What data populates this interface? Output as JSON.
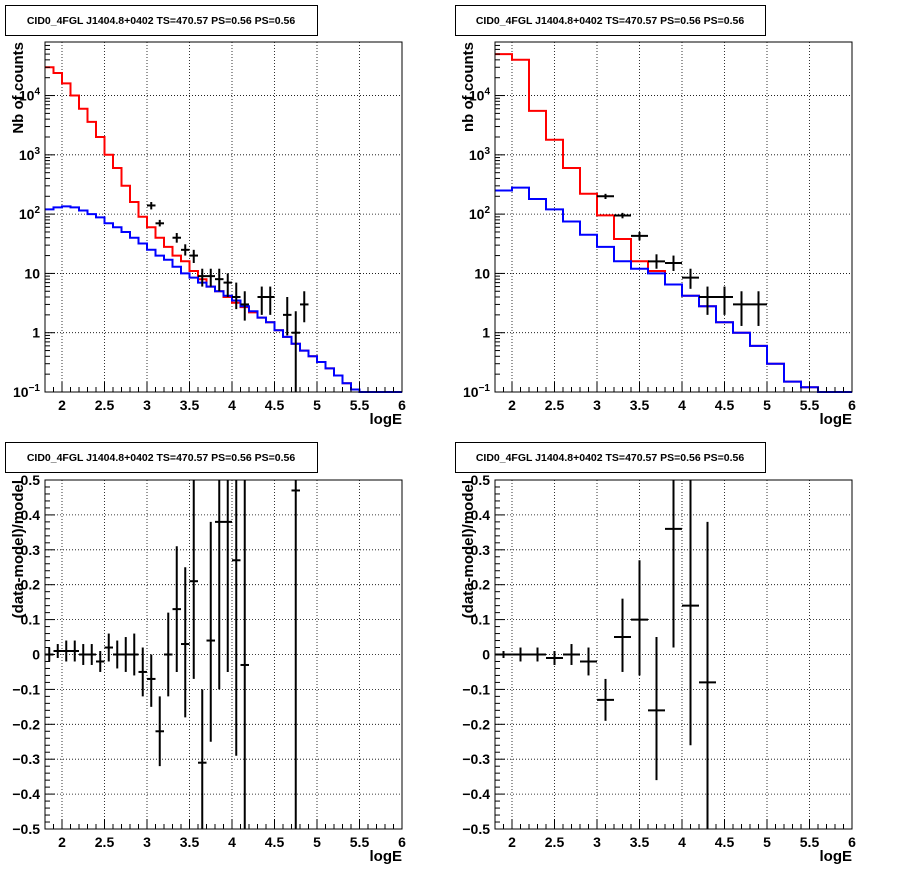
{
  "colors": {
    "total_model": "#ff0000",
    "component_model": "#0000ff",
    "data": "#000000",
    "frame": "#000000",
    "grid": "#000000"
  },
  "chart_data": [
    {
      "id": "counts-left",
      "type": "line",
      "title": "CID0_4FGL J1404.8+0402 TS=470.57 PS=0.56 PS=0.56",
      "xlabel": "logE",
      "ylabel": "Nb of counts",
      "xlim": [
        1.8,
        6.0
      ],
      "ylim": [
        0.1,
        80000
      ],
      "yscale": "log",
      "grid": true,
      "xticks": [
        "2",
        "2.5",
        "3",
        "3.5",
        "4",
        "4.5",
        "5",
        "5.5",
        "6"
      ],
      "yticks": [
        {
          "value": 0.1,
          "base": "10",
          "exp": "−1"
        },
        {
          "value": 1,
          "label": "1"
        },
        {
          "value": 10,
          "label": "10"
        },
        {
          "value": 100,
          "base": "10",
          "exp": "2"
        },
        {
          "value": 1000,
          "base": "10",
          "exp": "3"
        },
        {
          "value": 10000,
          "base": "10",
          "exp": "4"
        }
      ],
      "bin_edges": [
        1.8,
        1.9,
        2.0,
        2.1,
        2.2,
        2.3,
        2.4,
        2.5,
        2.6,
        2.7,
        2.8,
        2.9,
        3.0,
        3.1,
        3.2,
        3.3,
        3.4,
        3.5,
        3.6,
        3.7,
        3.8,
        3.9,
        4.0,
        4.1,
        4.2,
        4.3,
        4.4,
        4.5,
        4.6,
        4.7,
        4.8,
        4.9,
        5.0,
        5.1,
        5.2,
        5.3,
        5.4,
        5.5,
        5.6,
        5.7,
        5.8,
        5.9,
        6.0
      ],
      "series": [
        {
          "color_key": "total_model",
          "values": [
            30000,
            24000,
            16000,
            10000,
            6000,
            3600,
            2000,
            1000,
            600,
            300,
            160,
            90,
            60,
            40,
            28,
            20,
            16,
            11,
            8,
            6,
            5,
            4,
            3.2,
            2.7,
            2.2,
            1.8,
            1.5,
            1.1,
            0.85,
            0.65,
            0.5,
            0.4,
            0.32,
            0.25,
            0.19,
            0.14,
            0.11,
            0.1,
            0.1,
            0.1,
            0.1,
            0.1
          ]
        },
        {
          "color_key": "component_model",
          "values": [
            120,
            130,
            135,
            130,
            115,
            100,
            88,
            70,
            60,
            50,
            40,
            32,
            25,
            20,
            17,
            13,
            10,
            8.5,
            7,
            6,
            5,
            4.2,
            3.5,
            2.8,
            2.3,
            1.8,
            1.5,
            1.1,
            0.85,
            0.65,
            0.5,
            0.4,
            0.32,
            0.25,
            0.19,
            0.14,
            0.11,
            0.1,
            0.1,
            0.1,
            0.1,
            0.1
          ]
        }
      ],
      "points": [
        {
          "x": 3.05,
          "y": 140,
          "lo": 120,
          "hi": 160
        },
        {
          "x": 3.15,
          "y": 70,
          "lo": 62,
          "hi": 80
        },
        {
          "x": 3.35,
          "y": 40,
          "lo": 33,
          "hi": 48
        },
        {
          "x": 3.45,
          "y": 25,
          "lo": 20,
          "hi": 31
        },
        {
          "x": 3.55,
          "y": 20,
          "lo": 15,
          "hi": 25
        },
        {
          "x": 3.65,
          "y": 9,
          "lo": 6,
          "hi": 12
        },
        {
          "x": 3.75,
          "y": 9,
          "lo": 6,
          "hi": 12
        },
        {
          "x": 3.85,
          "y": 8,
          "lo": 5,
          "hi": 12
        },
        {
          "x": 3.95,
          "y": 7,
          "lo": 4,
          "hi": 10
        },
        {
          "x": 4.05,
          "y": 4,
          "lo": 2.5,
          "hi": 7
        },
        {
          "x": 4.15,
          "y": 3,
          "lo": 1.6,
          "hi": 5
        },
        {
          "x": 4.35,
          "y": 4,
          "lo": 2,
          "hi": 6
        },
        {
          "x": 4.45,
          "y": 4,
          "lo": 2,
          "hi": 6
        },
        {
          "x": 4.65,
          "y": 2,
          "lo": 0.9,
          "hi": 4
        },
        {
          "x": 4.75,
          "y": 1,
          "lo": 0.1,
          "hi": 2.3
        },
        {
          "x": 4.85,
          "y": 3,
          "lo": 1.5,
          "hi": 5
        }
      ]
    },
    {
      "id": "counts-right",
      "type": "line",
      "title": "CID0_4FGL J1404.8+0402 TS=470.57 PS=0.56 PS=0.56",
      "xlabel": "logE",
      "ylabel": "nb of counts",
      "xlim": [
        1.8,
        6.0
      ],
      "ylim": [
        0.1,
        80000
      ],
      "yscale": "log",
      "grid": true,
      "xticks": [
        "2",
        "2.5",
        "3",
        "3.5",
        "4",
        "4.5",
        "5",
        "5.5",
        "6"
      ],
      "yticks": [
        {
          "value": 0.1,
          "base": "10",
          "exp": "−1"
        },
        {
          "value": 1,
          "label": "1"
        },
        {
          "value": 10,
          "label": "10"
        },
        {
          "value": 100,
          "base": "10",
          "exp": "2"
        },
        {
          "value": 1000,
          "base": "10",
          "exp": "3"
        },
        {
          "value": 10000,
          "base": "10",
          "exp": "4"
        }
      ],
      "bin_edges": [
        1.8,
        2.0,
        2.2,
        2.4,
        2.6,
        2.8,
        3.0,
        3.2,
        3.4,
        3.6,
        3.8,
        4.0,
        4.2,
        4.4,
        4.6,
        4.8,
        5.0,
        5.2,
        5.4,
        5.6,
        5.8,
        6.0
      ],
      "series": [
        {
          "color_key": "total_model",
          "values": [
            50000,
            40000,
            5500,
            1800,
            600,
            220,
            95,
            38,
            16,
            11,
            6.5,
            4.2,
            2.8,
            1.5,
            1.0,
            0.6,
            0.3,
            0.15,
            0.12,
            0.1,
            0.1
          ]
        },
        {
          "color_key": "component_model",
          "values": [
            250,
            280,
            180,
            120,
            75,
            45,
            28,
            16,
            12,
            10,
            6.5,
            4.2,
            2.8,
            1.5,
            1.0,
            0.6,
            0.3,
            0.15,
            0.12,
            0.1,
            0.1
          ]
        }
      ],
      "points": [
        {
          "x": 3.1,
          "y": 200,
          "lo": 180,
          "hi": 220
        },
        {
          "x": 3.3,
          "y": 95,
          "lo": 85,
          "hi": 105
        },
        {
          "x": 3.5,
          "y": 43,
          "lo": 36,
          "hi": 50
        },
        {
          "x": 3.7,
          "y": 16,
          "lo": 12,
          "hi": 21
        },
        {
          "x": 3.9,
          "y": 15,
          "lo": 11,
          "hi": 20
        },
        {
          "x": 4.1,
          "y": 8.5,
          "lo": 5.5,
          "hi": 12
        },
        {
          "x": 4.3,
          "y": 4,
          "lo": 2,
          "hi": 6
        },
        {
          "x": 4.5,
          "y": 4,
          "lo": 2,
          "hi": 6
        },
        {
          "x": 4.7,
          "y": 3,
          "lo": 1.3,
          "hi": 5
        },
        {
          "x": 4.9,
          "y": 3,
          "lo": 1.3,
          "hi": 5
        }
      ]
    },
    {
      "id": "residuals-left",
      "type": "scatter",
      "title": "CID0_4FGL J1404.8+0402 TS=470.57 PS=0.56 PS=0.56",
      "xlabel": "logE",
      "ylabel": "(data-model)/model",
      "xlim": [
        1.8,
        6.0
      ],
      "ylim": [
        -0.5,
        0.5
      ],
      "yscale": "linear",
      "grid": true,
      "xticks": [
        "2",
        "2.5",
        "3",
        "3.5",
        "4",
        "4.5",
        "5",
        "5.5",
        "6"
      ],
      "yticks": [
        {
          "value": -0.5,
          "label": "−0.5"
        },
        {
          "value": -0.4,
          "label": "−0.4"
        },
        {
          "value": -0.3,
          "label": "−0.3"
        },
        {
          "value": -0.2,
          "label": "−0.2"
        },
        {
          "value": -0.1,
          "label": "−0.1"
        },
        {
          "value": 0,
          "label": "0"
        },
        {
          "value": 0.1,
          "label": "0.1"
        },
        {
          "value": 0.2,
          "label": "0.2"
        },
        {
          "value": 0.3,
          "label": "0.3"
        },
        {
          "value": 0.4,
          "label": "0.4"
        },
        {
          "value": 0.5,
          "label": "0.5"
        }
      ],
      "bin_width": 0.1,
      "series": [],
      "points": [
        {
          "x": 1.85,
          "y": 0.0,
          "lo": -0.02,
          "hi": 0.02
        },
        {
          "x": 1.95,
          "y": 0.01,
          "lo": -0.01,
          "hi": 0.03
        },
        {
          "x": 2.05,
          "y": 0.01,
          "lo": -0.02,
          "hi": 0.04
        },
        {
          "x": 2.15,
          "y": 0.01,
          "lo": -0.02,
          "hi": 0.04
        },
        {
          "x": 2.25,
          "y": 0.0,
          "lo": -0.03,
          "hi": 0.03
        },
        {
          "x": 2.35,
          "y": 0.0,
          "lo": -0.03,
          "hi": 0.03
        },
        {
          "x": 2.45,
          "y": -0.02,
          "lo": -0.05,
          "hi": 0.01
        },
        {
          "x": 2.55,
          "y": 0.02,
          "lo": -0.02,
          "hi": 0.06
        },
        {
          "x": 2.65,
          "y": 0.0,
          "lo": -0.04,
          "hi": 0.04
        },
        {
          "x": 2.75,
          "y": 0.0,
          "lo": -0.05,
          "hi": 0.05
        },
        {
          "x": 2.85,
          "y": 0.0,
          "lo": -0.06,
          "hi": 0.06
        },
        {
          "x": 2.95,
          "y": -0.05,
          "lo": -0.12,
          "hi": 0.02
        },
        {
          "x": 3.05,
          "y": -0.07,
          "lo": -0.15,
          "hi": 0.0
        },
        {
          "x": 3.15,
          "y": -0.22,
          "lo": -0.32,
          "hi": -0.12
        },
        {
          "x": 3.25,
          "y": 0.0,
          "lo": -0.12,
          "hi": 0.12
        },
        {
          "x": 3.35,
          "y": 0.13,
          "lo": -0.05,
          "hi": 0.31
        },
        {
          "x": 3.45,
          "y": 0.03,
          "lo": -0.18,
          "hi": 0.25
        },
        {
          "x": 3.55,
          "y": 0.21,
          "lo": -0.07,
          "hi": 0.5
        },
        {
          "x": 3.65,
          "y": -0.31,
          "lo": -0.5,
          "hi": -0.1
        },
        {
          "x": 3.75,
          "y": 0.04,
          "lo": -0.25,
          "hi": 0.38
        },
        {
          "x": 3.85,
          "y": 0.38,
          "lo": -0.1,
          "hi": 0.5
        },
        {
          "x": 3.95,
          "y": 0.38,
          "lo": -0.05,
          "hi": 0.5
        },
        {
          "x": 4.05,
          "y": 0.27,
          "lo": -0.29,
          "hi": 0.5
        },
        {
          "x": 4.15,
          "y": -0.03,
          "lo": -0.5,
          "hi": 0.5
        },
        {
          "x": 4.75,
          "y": 0.47,
          "lo": -0.5,
          "hi": 0.5
        }
      ]
    },
    {
      "id": "residuals-right",
      "type": "scatter",
      "title": "CID0_4FGL J1404.8+0402 TS=470.57 PS=0.56 PS=0.56",
      "xlabel": "logE",
      "ylabel": "(data-model)/model",
      "xlim": [
        1.8,
        6.0
      ],
      "ylim": [
        -0.5,
        0.5
      ],
      "yscale": "linear",
      "grid": true,
      "xticks": [
        "2",
        "2.5",
        "3",
        "3.5",
        "4",
        "4.5",
        "5",
        "5.5",
        "6"
      ],
      "yticks": [
        {
          "value": -0.5,
          "label": "−0.5"
        },
        {
          "value": -0.4,
          "label": "−0.4"
        },
        {
          "value": -0.3,
          "label": "−0.3"
        },
        {
          "value": -0.2,
          "label": "−0.2"
        },
        {
          "value": -0.1,
          "label": "−0.1"
        },
        {
          "value": 0,
          "label": "0"
        },
        {
          "value": 0.1,
          "label": "0.1"
        },
        {
          "value": 0.2,
          "label": "0.2"
        },
        {
          "value": 0.3,
          "label": "0.3"
        },
        {
          "value": 0.4,
          "label": "0.4"
        },
        {
          "value": 0.5,
          "label": "0.5"
        }
      ],
      "bin_width": 0.2,
      "series": [],
      "points": [
        {
          "x": 1.9,
          "y": 0.0,
          "lo": -0.01,
          "hi": 0.01
        },
        {
          "x": 2.1,
          "y": 0.0,
          "lo": -0.02,
          "hi": 0.02
        },
        {
          "x": 2.3,
          "y": 0.0,
          "lo": -0.02,
          "hi": 0.02
        },
        {
          "x": 2.5,
          "y": -0.01,
          "lo": -0.03,
          "hi": 0.01
        },
        {
          "x": 2.7,
          "y": 0.0,
          "lo": -0.03,
          "hi": 0.03
        },
        {
          "x": 2.9,
          "y": -0.02,
          "lo": -0.06,
          "hi": 0.02
        },
        {
          "x": 3.1,
          "y": -0.13,
          "lo": -0.19,
          "hi": -0.07
        },
        {
          "x": 3.3,
          "y": 0.05,
          "lo": -0.05,
          "hi": 0.16
        },
        {
          "x": 3.5,
          "y": 0.1,
          "lo": -0.06,
          "hi": 0.27
        },
        {
          "x": 3.7,
          "y": -0.16,
          "lo": -0.36,
          "hi": 0.05
        },
        {
          "x": 3.9,
          "y": 0.36,
          "lo": 0.02,
          "hi": 0.5
        },
        {
          "x": 4.1,
          "y": 0.14,
          "lo": -0.26,
          "hi": 0.5
        },
        {
          "x": 4.3,
          "y": -0.08,
          "lo": -0.5,
          "hi": 0.38
        }
      ]
    }
  ]
}
